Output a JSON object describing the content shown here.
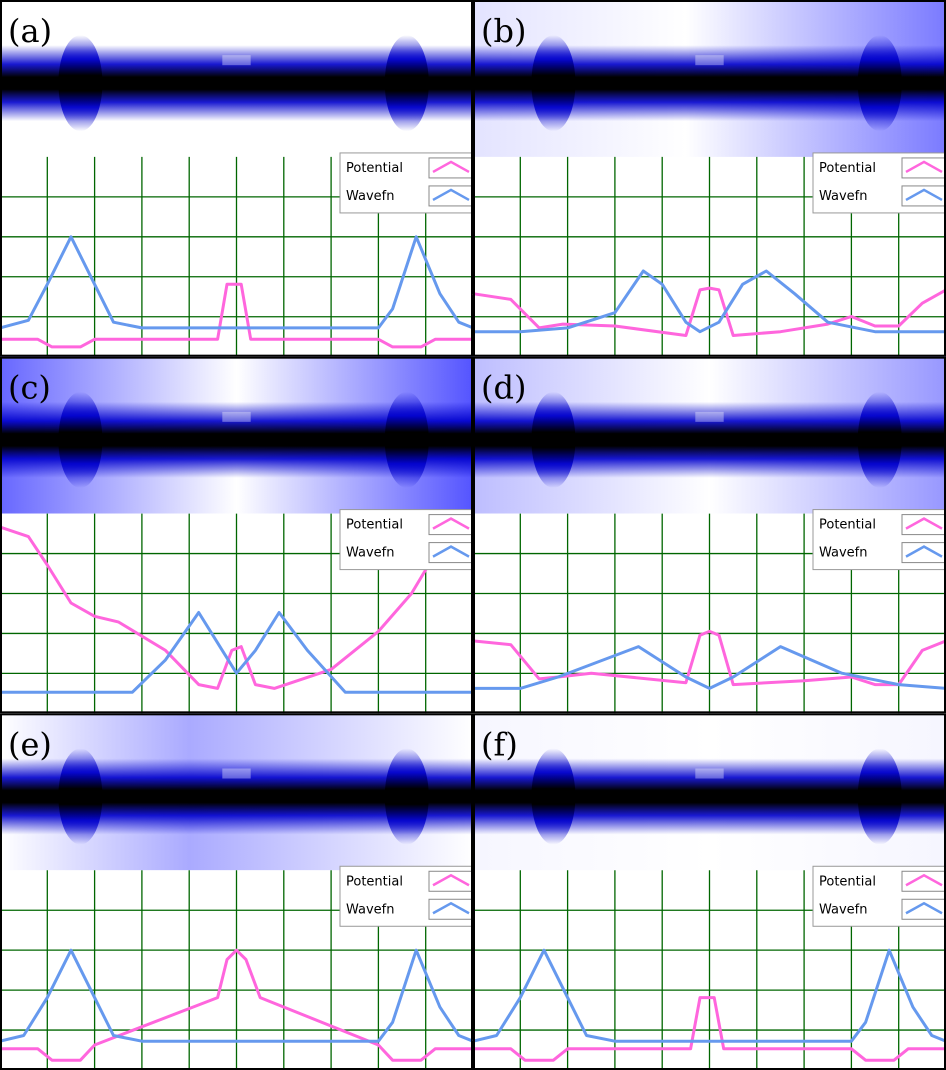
{
  "figure": {
    "rows": 3,
    "cols": 2
  },
  "legend": {
    "potential_label": "Potential",
    "wavefn_label": "Wavefn",
    "potential_color": "#ff66dd",
    "wavefn_color": "#6699ee"
  },
  "colors": {
    "grid": "#006600",
    "density_dark": "#000000",
    "density_mid": "#0000cc",
    "density_light": "#eef0ff"
  },
  "chart_data": [
    {
      "type": "line",
      "panel_label": "(a)",
      "xlim": [
        0,
        10
      ],
      "ylim": [
        0,
        10
      ],
      "grid": true,
      "legend": "top-right",
      "density_shading": [
        [
          0,
          0.0
        ],
        [
          4.5,
          0.0
        ],
        [
          10,
          0.0
        ]
      ],
      "series": [
        {
          "name": "Potential",
          "points": [
            [
              0,
              0.6
            ],
            [
              0.8,
              0.6
            ],
            [
              1.1,
              0.2
            ],
            [
              1.7,
              0.2
            ],
            [
              2.0,
              0.6
            ],
            [
              4.6,
              0.6
            ],
            [
              4.8,
              3.5
            ],
            [
              5.1,
              3.5
            ],
            [
              5.3,
              0.6
            ],
            [
              8.0,
              0.6
            ],
            [
              8.3,
              0.2
            ],
            [
              8.9,
              0.2
            ],
            [
              9.2,
              0.6
            ],
            [
              10,
              0.6
            ]
          ]
        },
        {
          "name": "Wavefn",
          "points": [
            [
              0,
              1.2
            ],
            [
              0.6,
              1.6
            ],
            [
              1.0,
              3.5
            ],
            [
              1.5,
              6.0
            ],
            [
              2.0,
              3.5
            ],
            [
              2.4,
              1.5
            ],
            [
              3.0,
              1.2
            ],
            [
              8.0,
              1.2
            ],
            [
              8.3,
              2.2
            ],
            [
              8.8,
              6.0
            ],
            [
              9.3,
              3.0
            ],
            [
              9.7,
              1.5
            ],
            [
              10,
              1.2
            ]
          ]
        }
      ]
    },
    {
      "type": "line",
      "panel_label": "(b)",
      "xlim": [
        0,
        10
      ],
      "ylim": [
        0,
        10
      ],
      "grid": true,
      "legend": "top-right",
      "density_shading": [
        [
          0,
          0.15
        ],
        [
          4.5,
          0.0
        ],
        [
          10,
          0.7
        ]
      ],
      "series": [
        {
          "name": "Potential",
          "points": [
            [
              0,
              3.0
            ],
            [
              0.8,
              2.7
            ],
            [
              1.4,
              1.2
            ],
            [
              1.9,
              1.4
            ],
            [
              3.0,
              1.3
            ],
            [
              4.5,
              0.8
            ],
            [
              4.8,
              3.2
            ],
            [
              5.0,
              3.3
            ],
            [
              5.2,
              3.2
            ],
            [
              5.5,
              0.8
            ],
            [
              6.5,
              1.0
            ],
            [
              7.5,
              1.4
            ],
            [
              8.0,
              1.8
            ],
            [
              8.5,
              1.3
            ],
            [
              9.0,
              1.3
            ],
            [
              9.5,
              2.5
            ],
            [
              10,
              3.2
            ]
          ]
        },
        {
          "name": "Wavefn",
          "points": [
            [
              0,
              1.0
            ],
            [
              1.0,
              1.0
            ],
            [
              2.0,
              1.2
            ],
            [
              3.0,
              2.0
            ],
            [
              3.6,
              4.2
            ],
            [
              4.0,
              3.5
            ],
            [
              4.5,
              1.5
            ],
            [
              4.8,
              1.0
            ],
            [
              5.2,
              1.5
            ],
            [
              5.7,
              3.5
            ],
            [
              6.2,
              4.2
            ],
            [
              6.8,
              3.0
            ],
            [
              7.5,
              1.5
            ],
            [
              8.5,
              1.0
            ],
            [
              10,
              1.0
            ]
          ]
        }
      ]
    },
    {
      "type": "line",
      "panel_label": "(c)",
      "xlim": [
        0,
        10
      ],
      "ylim": [
        0,
        10
      ],
      "grid": true,
      "legend": "top-right",
      "density_shading": [
        [
          0,
          0.8
        ],
        [
          5.0,
          0.0
        ],
        [
          10,
          0.9
        ]
      ],
      "series": [
        {
          "name": "Potential",
          "points": [
            [
              0,
              9.5
            ],
            [
              0.6,
              9.0
            ],
            [
              1.0,
              7.5
            ],
            [
              1.5,
              5.5
            ],
            [
              2.0,
              4.8
            ],
            [
              2.5,
              4.5
            ],
            [
              3.5,
              3.0
            ],
            [
              4.2,
              1.2
            ],
            [
              4.6,
              1.0
            ],
            [
              4.9,
              3.0
            ],
            [
              5.1,
              3.2
            ],
            [
              5.4,
              1.2
            ],
            [
              5.8,
              1.0
            ],
            [
              7.0,
              2.0
            ],
            [
              8.0,
              4.0
            ],
            [
              8.7,
              6.0
            ],
            [
              9.3,
              8.5
            ],
            [
              10,
              9.5
            ]
          ]
        },
        {
          "name": "Wavefn",
          "points": [
            [
              0,
              0.8
            ],
            [
              2.8,
              0.8
            ],
            [
              3.5,
              2.5
            ],
            [
              4.2,
              5.0
            ],
            [
              4.7,
              3.0
            ],
            [
              5.0,
              1.8
            ],
            [
              5.4,
              3.0
            ],
            [
              5.9,
              5.0
            ],
            [
              6.5,
              3.0
            ],
            [
              7.3,
              0.8
            ],
            [
              10,
              0.8
            ]
          ]
        }
      ]
    },
    {
      "type": "line",
      "panel_label": "(d)",
      "xlim": [
        0,
        10
      ],
      "ylim": [
        0,
        10
      ],
      "grid": true,
      "legend": "top-right",
      "density_shading": [
        [
          0,
          0.35
        ],
        [
          5.0,
          0.0
        ],
        [
          10,
          0.55
        ]
      ],
      "series": [
        {
          "name": "Potential",
          "points": [
            [
              0,
              3.5
            ],
            [
              0.8,
              3.3
            ],
            [
              1.4,
              1.5
            ],
            [
              1.8,
              1.6
            ],
            [
              2.5,
              1.8
            ],
            [
              4.5,
              1.3
            ],
            [
              4.8,
              3.8
            ],
            [
              5.0,
              4.0
            ],
            [
              5.2,
              3.8
            ],
            [
              5.5,
              1.2
            ],
            [
              7.0,
              1.4
            ],
            [
              8.0,
              1.6
            ],
            [
              8.5,
              1.2
            ],
            [
              9.0,
              1.2
            ],
            [
              9.5,
              3.0
            ],
            [
              10,
              3.5
            ]
          ]
        },
        {
          "name": "Wavefn",
          "points": [
            [
              0,
              1.0
            ],
            [
              1.0,
              1.0
            ],
            [
              1.8,
              1.6
            ],
            [
              3.5,
              3.2
            ],
            [
              4.5,
              1.6
            ],
            [
              5.0,
              1.0
            ],
            [
              5.5,
              1.6
            ],
            [
              6.5,
              3.2
            ],
            [
              7.8,
              1.8
            ],
            [
              9.0,
              1.2
            ],
            [
              10,
              1.0
            ]
          ]
        }
      ]
    },
    {
      "type": "line",
      "panel_label": "(e)",
      "xlim": [
        0,
        10
      ],
      "ylim": [
        0,
        10
      ],
      "grid": true,
      "legend": "top-right",
      "density_shading": [
        [
          0,
          0.0
        ],
        [
          4.0,
          0.45
        ],
        [
          10,
          0.0
        ]
      ],
      "series": [
        {
          "name": "Potential",
          "points": [
            [
              0,
              0.8
            ],
            [
              0.8,
              0.8
            ],
            [
              1.1,
              0.2
            ],
            [
              1.7,
              0.2
            ],
            [
              2.0,
              1.0
            ],
            [
              4.6,
              3.5
            ],
            [
              4.8,
              5.5
            ],
            [
              5.0,
              6.0
            ],
            [
              5.2,
              5.5
            ],
            [
              5.5,
              3.5
            ],
            [
              8.0,
              1.0
            ],
            [
              8.3,
              0.2
            ],
            [
              8.9,
              0.2
            ],
            [
              9.2,
              0.8
            ],
            [
              10,
              0.8
            ]
          ]
        },
        {
          "name": "Wavefn",
          "points": [
            [
              0,
              1.2
            ],
            [
              0.5,
              1.5
            ],
            [
              1.0,
              3.5
            ],
            [
              1.5,
              6.0
            ],
            [
              2.0,
              3.5
            ],
            [
              2.4,
              1.5
            ],
            [
              3.0,
              1.2
            ],
            [
              8.0,
              1.2
            ],
            [
              8.3,
              2.2
            ],
            [
              8.8,
              6.0
            ],
            [
              9.3,
              3.0
            ],
            [
              9.7,
              1.5
            ],
            [
              10,
              1.2
            ]
          ]
        }
      ]
    },
    {
      "type": "line",
      "panel_label": "(f)",
      "xlim": [
        0,
        10
      ],
      "ylim": [
        0,
        10
      ],
      "grid": true,
      "legend": "top-right",
      "density_shading": [
        [
          0,
          0.05
        ],
        [
          5.0,
          0.0
        ],
        [
          10,
          0.05
        ]
      ],
      "series": [
        {
          "name": "Potential",
          "points": [
            [
              0,
              0.8
            ],
            [
              0.8,
              0.8
            ],
            [
              1.1,
              0.2
            ],
            [
              1.7,
              0.2
            ],
            [
              2.0,
              0.8
            ],
            [
              4.6,
              0.8
            ],
            [
              4.8,
              3.5
            ],
            [
              5.1,
              3.5
            ],
            [
              5.3,
              0.8
            ],
            [
              8.0,
              0.8
            ],
            [
              8.3,
              0.2
            ],
            [
              8.9,
              0.2
            ],
            [
              9.2,
              0.8
            ],
            [
              10,
              0.8
            ]
          ]
        },
        {
          "name": "Wavefn",
          "points": [
            [
              0,
              1.2
            ],
            [
              0.5,
              1.5
            ],
            [
              1.0,
              3.5
            ],
            [
              1.5,
              6.0
            ],
            [
              2.0,
              3.5
            ],
            [
              2.4,
              1.5
            ],
            [
              3.0,
              1.2
            ],
            [
              8.0,
              1.2
            ],
            [
              8.3,
              2.2
            ],
            [
              8.8,
              6.0
            ],
            [
              9.3,
              3.0
            ],
            [
              9.7,
              1.5
            ],
            [
              10,
              1.2
            ]
          ]
        }
      ]
    }
  ]
}
